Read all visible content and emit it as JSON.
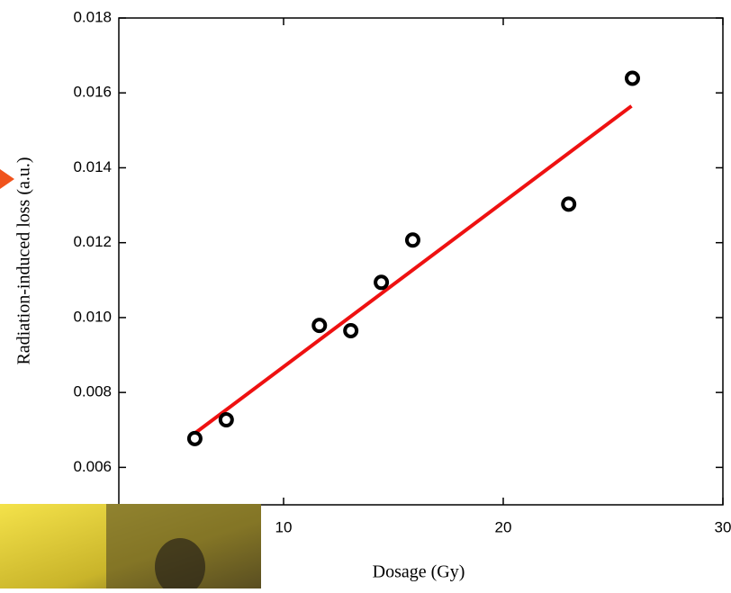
{
  "chart_data": {
    "type": "scatter",
    "x_label": "Dosage (Gy)",
    "y_label": "Radiation-induced loss (a.u.)",
    "x": [
      5.96,
      7.39,
      11.63,
      13.06,
      14.45,
      15.88,
      22.98,
      25.88
    ],
    "series": [
      {
        "color": "#000000",
        "values": [
          0.00677,
          0.00727,
          0.00979,
          0.00965,
          0.01094,
          0.01207,
          0.01303,
          0.01639
        ]
      }
    ],
    "fit": {
      "x": [
        5.96,
        25.84
      ],
      "values": [
        0.00691,
        0.01565
      ],
      "color": "#ee1111"
    },
    "xlim": [
      2.5,
      30
    ],
    "xticks": [
      10,
      20,
      30
    ],
    "ylim": [
      0.005,
      0.018
    ],
    "yticks": [
      0.006,
      0.008,
      {
        "value": 0.01,
        "label": "0.010"
      },
      0.012,
      0.014,
      0.016,
      0.018
    ]
  }
}
